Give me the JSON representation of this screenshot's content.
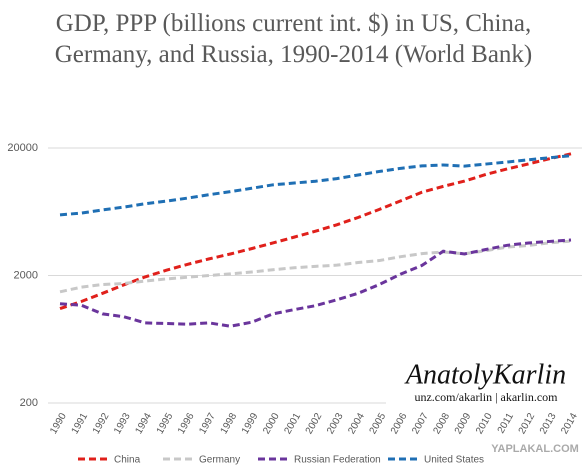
{
  "chart_data": {
    "type": "line",
    "title": "GDP, PPP (billions current int. $) in US, China, Germany, and Russia, 1990-2014 (World Bank)",
    "categories": [
      "1990",
      "1991",
      "1992",
      "1993",
      "1994",
      "1995",
      "1996",
      "1997",
      "1998",
      "1999",
      "2000",
      "2001",
      "2002",
      "2003",
      "2004",
      "2005",
      "2006",
      "2007",
      "2008",
      "2009",
      "2010",
      "2011",
      "2012",
      "2013",
      "2014"
    ],
    "log_scale": true,
    "grid": true,
    "legend": "bottom",
    "ylim": [
      200,
      20000
    ],
    "yticks": [
      200,
      2000,
      20000
    ],
    "series": [
      {
        "name": "China",
        "color": "#e0201b",
        "values": [
          1100,
          1250,
          1450,
          1690,
          1950,
          2200,
          2450,
          2700,
          2950,
          3250,
          3600,
          4000,
          4450,
          5000,
          5700,
          6600,
          7700,
          9000,
          10000,
          11000,
          12400,
          13700,
          15000,
          16500,
          18000
        ]
      },
      {
        "name": "Germany",
        "color": "#c8c8c8",
        "values": [
          1490,
          1620,
          1700,
          1730,
          1810,
          1880,
          1940,
          2000,
          2060,
          2130,
          2220,
          2300,
          2360,
          2410,
          2530,
          2620,
          2810,
          2970,
          3060,
          2960,
          3130,
          3340,
          3440,
          3610,
          3720
        ]
      },
      {
        "name": "Russian Federation",
        "color": "#6a359c",
        "values": [
          1200,
          1170,
          1000,
          950,
          850,
          840,
          830,
          850,
          800,
          860,
          1000,
          1080,
          1160,
          1290,
          1450,
          1700,
          2050,
          2400,
          3100,
          2950,
          3200,
          3450,
          3600,
          3700,
          3800
        ]
      },
      {
        "name": "United States",
        "color": "#1f6fb4",
        "values": [
          5980,
          6174,
          6539,
          6879,
          7309,
          7664,
          8100,
          8609,
          9089,
          9661,
          10285,
          10622,
          10978,
          11511,
          12275,
          13094,
          13856,
          14478,
          14719,
          14419,
          14964,
          15518,
          16163,
          16768,
          17419
        ]
      }
    ],
    "annotations": [
      "AnatolyKarlin",
      "unz.com/akarlin | akarlin.com",
      "YAPLAKAL.COM"
    ]
  }
}
